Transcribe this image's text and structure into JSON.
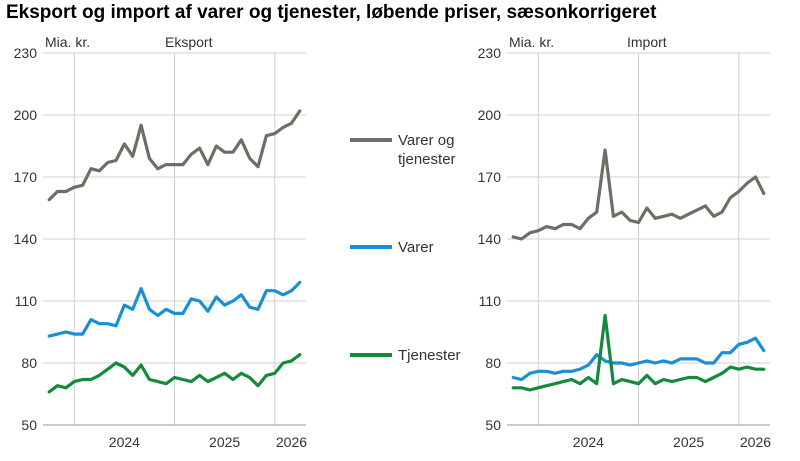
{
  "title": "Eksport og import af varer og tjenester, løbende priser, sæsonkorrigeret",
  "colors": {
    "total": "#6e6e64",
    "goods": "#1a8fd6",
    "services": "#138a3c",
    "grid": "#d0d0d0"
  },
  "legend": [
    "Varer og tjenester",
    "Varer",
    "Tjenester"
  ],
  "chart_data": [
    {
      "type": "line",
      "title": "Eksport",
      "ylabel": "Mia. kr.",
      "ylim": [
        50,
        230
      ],
      "yticks": [
        50,
        80,
        110,
        140,
        170,
        200,
        230
      ],
      "xtick_labels": [
        "2024",
        "2025",
        "2026"
      ],
      "grid": true,
      "series": [
        {
          "name": "Varer og tjenester",
          "values": [
            159,
            163,
            163,
            165,
            166,
            174,
            173,
            177,
            178,
            186,
            180,
            195,
            179,
            174,
            176,
            176,
            176,
            181,
            184,
            176,
            185,
            182,
            182,
            188,
            179,
            175,
            190,
            191,
            194,
            196,
            202
          ]
        },
        {
          "name": "Varer",
          "values": [
            93,
            94,
            95,
            94,
            94,
            101,
            99,
            99,
            98,
            108,
            106,
            116,
            106,
            103,
            106,
            104,
            104,
            111,
            110,
            105,
            112,
            108,
            110,
            113,
            107,
            106,
            115,
            115,
            113,
            115,
            119
          ]
        },
        {
          "name": "Tjenester",
          "values": [
            66,
            69,
            68,
            71,
            72,
            72,
            74,
            77,
            80,
            78,
            74,
            79,
            72,
            71,
            70,
            73,
            72,
            71,
            74,
            71,
            73,
            75,
            72,
            75,
            73,
            69,
            74,
            75,
            80,
            81,
            84
          ]
        }
      ]
    },
    {
      "type": "line",
      "title": "Import",
      "ylabel": "Mia. kr.",
      "ylim": [
        50,
        230
      ],
      "yticks": [
        50,
        80,
        110,
        140,
        170,
        200,
        230
      ],
      "xtick_labels": [
        "2024",
        "2025",
        "2026"
      ],
      "grid": true,
      "series": [
        {
          "name": "Varer og tjenester",
          "values": [
            141,
            140,
            143,
            144,
            146,
            145,
            147,
            147,
            145,
            150,
            153,
            183,
            151,
            153,
            149,
            148,
            155,
            150,
            151,
            152,
            150,
            152,
            154,
            156,
            151,
            153,
            160,
            163,
            167,
            170,
            162
          ]
        },
        {
          "name": "Varer",
          "values": [
            73,
            72,
            75,
            76,
            76,
            75,
            76,
            76,
            77,
            79,
            84,
            81,
            80,
            80,
            79,
            80,
            81,
            80,
            81,
            80,
            82,
            82,
            82,
            80,
            80,
            85,
            85,
            89,
            90,
            92,
            86
          ]
        },
        {
          "name": "Tjenester",
          "values": [
            68,
            68,
            67,
            68,
            69,
            70,
            71,
            72,
            70,
            73,
            70,
            103,
            70,
            72,
            71,
            70,
            74,
            70,
            72,
            71,
            72,
            73,
            73,
            71,
            73,
            75,
            78,
            77,
            78,
            77,
            77
          ]
        }
      ]
    }
  ]
}
